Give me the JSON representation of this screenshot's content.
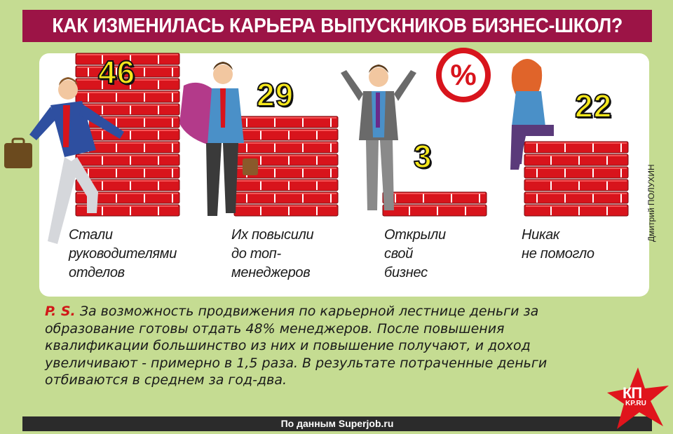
{
  "chart_data": {
    "type": "bar",
    "title": "КАК ИЗМЕНИЛАСЬ КАРЬЕРА ВЫПУСКНИКОВ БИЗНЕС-ШКОЛ?",
    "categories": [
      "Стали\nруководителями\nотделов",
      "Их повысили\nдо топ-\nменеджеров",
      "Открыли\nсвой\nбизнес",
      "Никак\nне помогло"
    ],
    "values": [
      46,
      29,
      3,
      22
    ],
    "value_labels": [
      "46",
      "29",
      "3",
      "22"
    ],
    "unit": "%",
    "bar_color": "#d8141c",
    "ylim": [
      0,
      46
    ]
  },
  "credits": {
    "author": "Дмитрий ПОЛУХИН"
  },
  "postscript": {
    "label": "P. S.",
    "text": "За возможность продвижения по карьерной лестнице деньги за образование готовы отдать 48% менеджеров. После повышения квалификации большинство из них и повышение получают, и доход увеличивают - примерно в 1,5 раза. В результате потраченные деньги отбиваются в среднем за год-два."
  },
  "source": {
    "text": "По данным Superjob.ru"
  },
  "logo": {
    "name": "КП",
    "domain": "KP.RU"
  }
}
